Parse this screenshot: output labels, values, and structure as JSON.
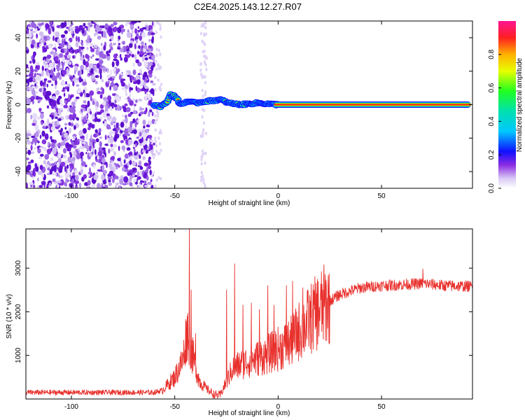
{
  "title": "C2E4.2025.143.12.27.R07",
  "chart_data": [
    {
      "type": "heatmap",
      "xlabel": "Height of straight line (km)",
      "ylabel": "Frequency (Hz)",
      "xlim": [
        -122,
        94
      ],
      "ylim": [
        -50,
        50
      ],
      "xticks": [
        "-100",
        "-50",
        "0",
        "50"
      ],
      "xtick_values": [
        -100,
        -50,
        0,
        50
      ],
      "yticks": [
        "-40",
        "-20",
        "0",
        "20",
        "40"
      ],
      "ytick_values": [
        -40,
        -20,
        0,
        20,
        40
      ],
      "colorbar": {
        "label": "Normalized spectral amplitude",
        "ticks": [
          "0.0",
          "0.2",
          "0.4",
          "0.6",
          "0.8"
        ],
        "tick_values": [
          0.0,
          0.2,
          0.4,
          0.6,
          0.8
        ],
        "range": [
          0,
          1
        ]
      },
      "features": {
        "noise_region_x": [
          -122,
          -60
        ],
        "onset_x": -60,
        "echo_frequency_hz": 0,
        "echo_path": [
          {
            "x": -60,
            "y": 0
          },
          {
            "x": -57,
            "y": -1
          },
          {
            "x": -54,
            "y": 1
          },
          {
            "x": -52,
            "y": 6
          },
          {
            "x": -50,
            "y": 5
          },
          {
            "x": -47,
            "y": 0
          },
          {
            "x": -44,
            "y": 2
          },
          {
            "x": -40,
            "y": 1
          },
          {
            "x": -35,
            "y": 2
          },
          {
            "x": -28,
            "y": 3
          },
          {
            "x": -24,
            "y": 1
          },
          {
            "x": -18,
            "y": 0
          },
          {
            "x": -10,
            "y": 1
          },
          {
            "x": 0,
            "y": 0
          },
          {
            "x": 94,
            "y": 0
          }
        ]
      }
    },
    {
      "type": "line",
      "xlabel": "Height of straight line (km)",
      "ylabel": "SNR (10 * v/v)",
      "xlim": [
        -122,
        94
      ],
      "ylim": [
        0,
        3900
      ],
      "xticks": [
        "-100",
        "-50",
        "0",
        "50"
      ],
      "xtick_values": [
        -100,
        -50,
        0,
        50
      ],
      "yticks": [
        "1000",
        "2000",
        "3000"
      ],
      "ytick_values": [
        1000,
        2000,
        3000
      ],
      "series_color": "#e8302c",
      "trend": [
        {
          "x": -122,
          "y": 150
        },
        {
          "x": -60,
          "y": 150
        },
        {
          "x": -56,
          "y": 200
        },
        {
          "x": -50,
          "y": 500
        },
        {
          "x": -46,
          "y": 900
        },
        {
          "x": -44,
          "y": 1600
        },
        {
          "x": -42,
          "y": 1100
        },
        {
          "x": -38,
          "y": 400
        },
        {
          "x": -35,
          "y": 250
        },
        {
          "x": -31,
          "y": 100
        },
        {
          "x": -28,
          "y": 80
        },
        {
          "x": -26,
          "y": 300
        },
        {
          "x": -22,
          "y": 700
        },
        {
          "x": -18,
          "y": 800
        },
        {
          "x": -12,
          "y": 900
        },
        {
          "x": -6,
          "y": 1000
        },
        {
          "x": 0,
          "y": 1150
        },
        {
          "x": 6,
          "y": 1300
        },
        {
          "x": 10,
          "y": 1550
        },
        {
          "x": 15,
          "y": 1800
        },
        {
          "x": 20,
          "y": 2050
        },
        {
          "x": 25,
          "y": 2250
        },
        {
          "x": 30,
          "y": 2400
        },
        {
          "x": 40,
          "y": 2550
        },
        {
          "x": 50,
          "y": 2600
        },
        {
          "x": 60,
          "y": 2620
        },
        {
          "x": 70,
          "y": 2650
        },
        {
          "x": 80,
          "y": 2600
        },
        {
          "x": 94,
          "y": 2580
        }
      ],
      "spikes": [
        {
          "x": -43,
          "y": 3900
        },
        {
          "x": -42,
          "y": 2500
        },
        {
          "x": -44,
          "y": 1900
        },
        {
          "x": -40,
          "y": 1500
        },
        {
          "x": -25,
          "y": 2500
        },
        {
          "x": -21,
          "y": 3100
        },
        {
          "x": -17,
          "y": 2150
        },
        {
          "x": -13,
          "y": 2200
        },
        {
          "x": -9,
          "y": 2050
        },
        {
          "x": -5,
          "y": 2600
        },
        {
          "x": -2,
          "y": 2150
        },
        {
          "x": 4,
          "y": 2600
        },
        {
          "x": 7,
          "y": 2700
        },
        {
          "x": 12,
          "y": 2550
        },
        {
          "x": 70,
          "y": 2980
        }
      ]
    }
  ]
}
